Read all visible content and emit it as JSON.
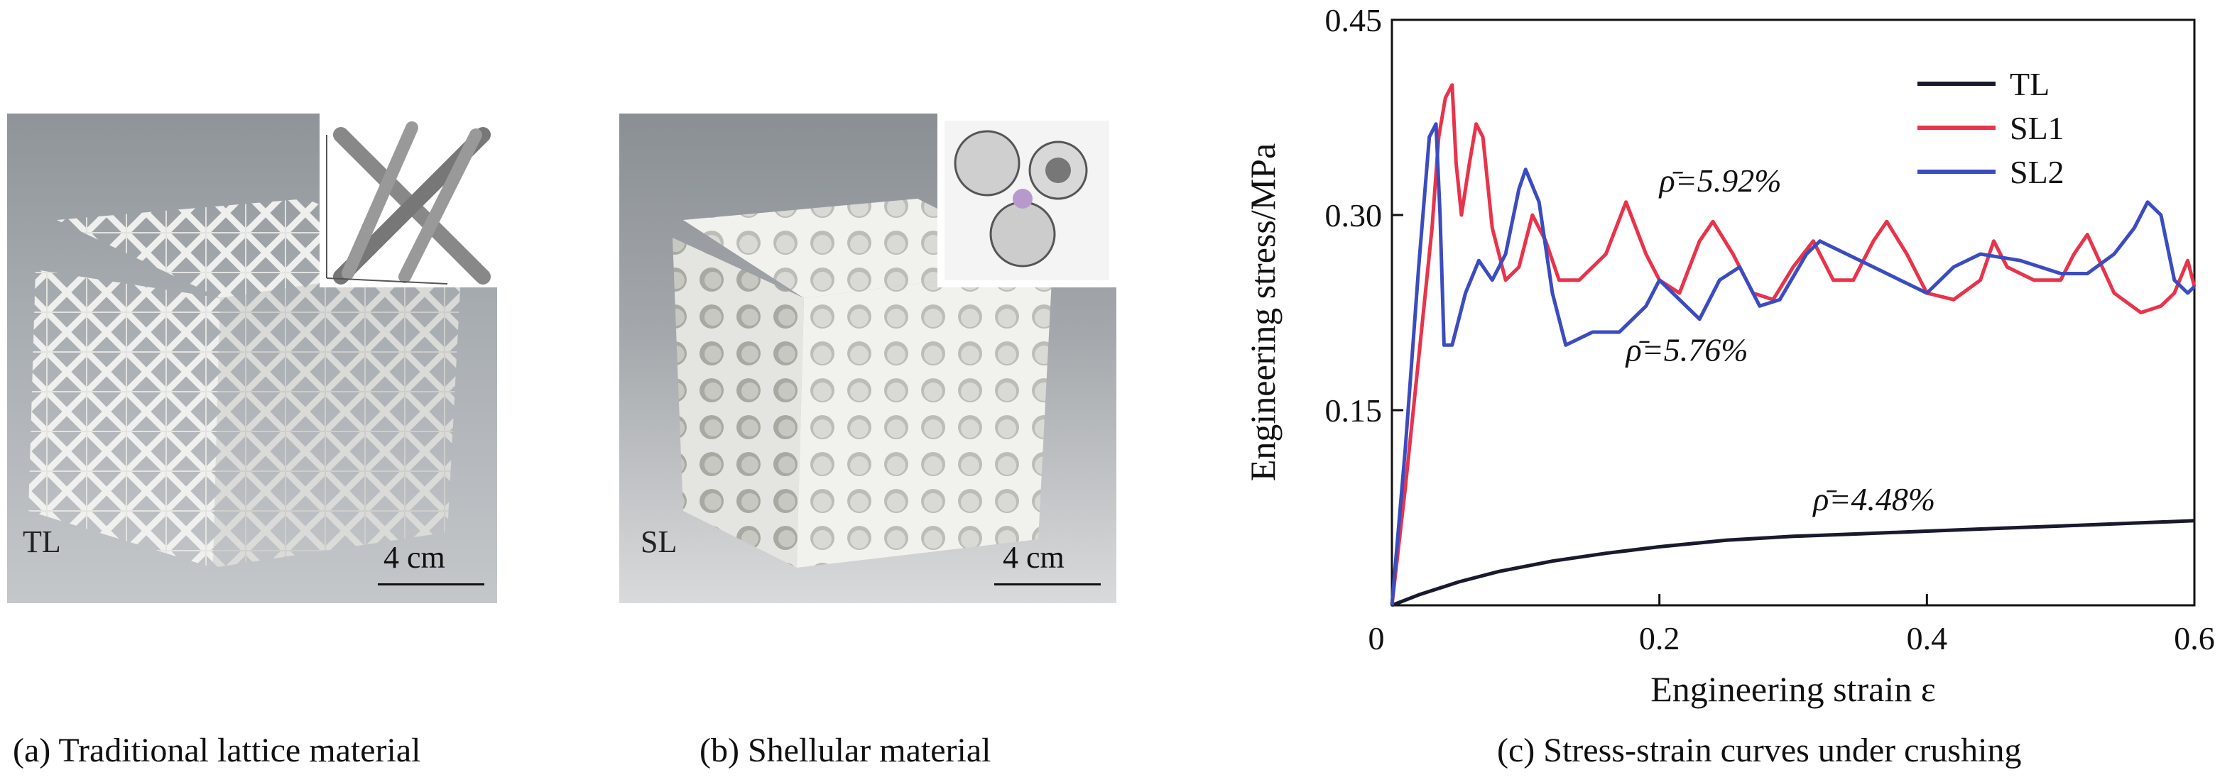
{
  "panels": {
    "a": {
      "tag": "TL",
      "scale": "4 cm",
      "caption": "(a) Traditional lattice material"
    },
    "b": {
      "tag": "SL",
      "scale": "4 cm",
      "caption": "(b) Shellular material"
    },
    "c": {
      "caption": "(c) Stress-strain curves under crushing"
    }
  },
  "chart_data": {
    "type": "line",
    "xlabel": "Engineering strain ε",
    "ylabel": "Engineering stress/MPa",
    "xlim": [
      0,
      0.6
    ],
    "ylim": [
      0,
      0.45
    ],
    "x_ticks": [
      "0",
      "0.2",
      "0.4",
      "0.6"
    ],
    "y_ticks": [
      "0.15",
      "0.30",
      "0.45"
    ],
    "x_tick_values": [
      0,
      0.2,
      0.4,
      0.6
    ],
    "y_tick_values": [
      0.15,
      0.3,
      0.45
    ],
    "legend_position": "top-right",
    "grid": false,
    "series": [
      {
        "name": "TL",
        "color": "#1a1a2e",
        "x": [
          0,
          0.02,
          0.05,
          0.08,
          0.12,
          0.16,
          0.2,
          0.25,
          0.3,
          0.35,
          0.4,
          0.45,
          0.5,
          0.55,
          0.6
        ],
        "y": [
          0,
          0.008,
          0.018,
          0.026,
          0.034,
          0.04,
          0.045,
          0.05,
          0.053,
          0.055,
          0.057,
          0.059,
          0.061,
          0.063,
          0.065
        ]
      },
      {
        "name": "SL1",
        "color": "#e8334a",
        "x": [
          0,
          0.01,
          0.02,
          0.03,
          0.035,
          0.04,
          0.045,
          0.048,
          0.052,
          0.058,
          0.063,
          0.068,
          0.075,
          0.085,
          0.095,
          0.105,
          0.115,
          0.125,
          0.14,
          0.16,
          0.175,
          0.19,
          0.2,
          0.215,
          0.23,
          0.24,
          0.255,
          0.27,
          0.285,
          0.3,
          0.315,
          0.33,
          0.345,
          0.36,
          0.37,
          0.385,
          0.4,
          0.42,
          0.44,
          0.45,
          0.46,
          0.48,
          0.5,
          0.51,
          0.52,
          0.54,
          0.56,
          0.575,
          0.585,
          0.595,
          0.6
        ],
        "y": [
          0,
          0.09,
          0.19,
          0.29,
          0.36,
          0.39,
          0.4,
          0.34,
          0.3,
          0.34,
          0.37,
          0.36,
          0.29,
          0.25,
          0.26,
          0.3,
          0.28,
          0.25,
          0.25,
          0.27,
          0.31,
          0.27,
          0.25,
          0.24,
          0.28,
          0.295,
          0.27,
          0.24,
          0.235,
          0.26,
          0.28,
          0.25,
          0.25,
          0.28,
          0.295,
          0.27,
          0.24,
          0.235,
          0.25,
          0.28,
          0.26,
          0.25,
          0.25,
          0.27,
          0.285,
          0.24,
          0.225,
          0.23,
          0.24,
          0.265,
          0.245
        ]
      },
      {
        "name": "SL2",
        "color": "#3b4cc0",
        "x": [
          0,
          0.01,
          0.02,
          0.028,
          0.033,
          0.036,
          0.039,
          0.045,
          0.055,
          0.065,
          0.075,
          0.085,
          0.095,
          0.1,
          0.11,
          0.12,
          0.13,
          0.15,
          0.17,
          0.19,
          0.2,
          0.215,
          0.23,
          0.245,
          0.26,
          0.275,
          0.29,
          0.31,
          0.32,
          0.34,
          0.36,
          0.38,
          0.4,
          0.42,
          0.44,
          0.47,
          0.5,
          0.52,
          0.54,
          0.555,
          0.565,
          0.575,
          0.585,
          0.595,
          0.6
        ],
        "y": [
          0,
          0.12,
          0.26,
          0.36,
          0.37,
          0.3,
          0.2,
          0.2,
          0.24,
          0.265,
          0.25,
          0.27,
          0.32,
          0.335,
          0.31,
          0.24,
          0.2,
          0.21,
          0.21,
          0.23,
          0.25,
          0.235,
          0.22,
          0.25,
          0.26,
          0.23,
          0.235,
          0.27,
          0.28,
          0.27,
          0.26,
          0.25,
          0.24,
          0.26,
          0.27,
          0.265,
          0.255,
          0.255,
          0.27,
          0.29,
          0.31,
          0.3,
          0.25,
          0.24,
          0.245
        ]
      }
    ],
    "annotations": [
      {
        "text": "ρ̄=5.92%",
        "x": 0.2,
        "y": 0.318
      },
      {
        "text": "ρ̄=5.76%",
        "x": 0.175,
        "y": 0.188
      },
      {
        "text": "ρ̄=4.48%",
        "x": 0.315,
        "y": 0.073
      }
    ]
  }
}
